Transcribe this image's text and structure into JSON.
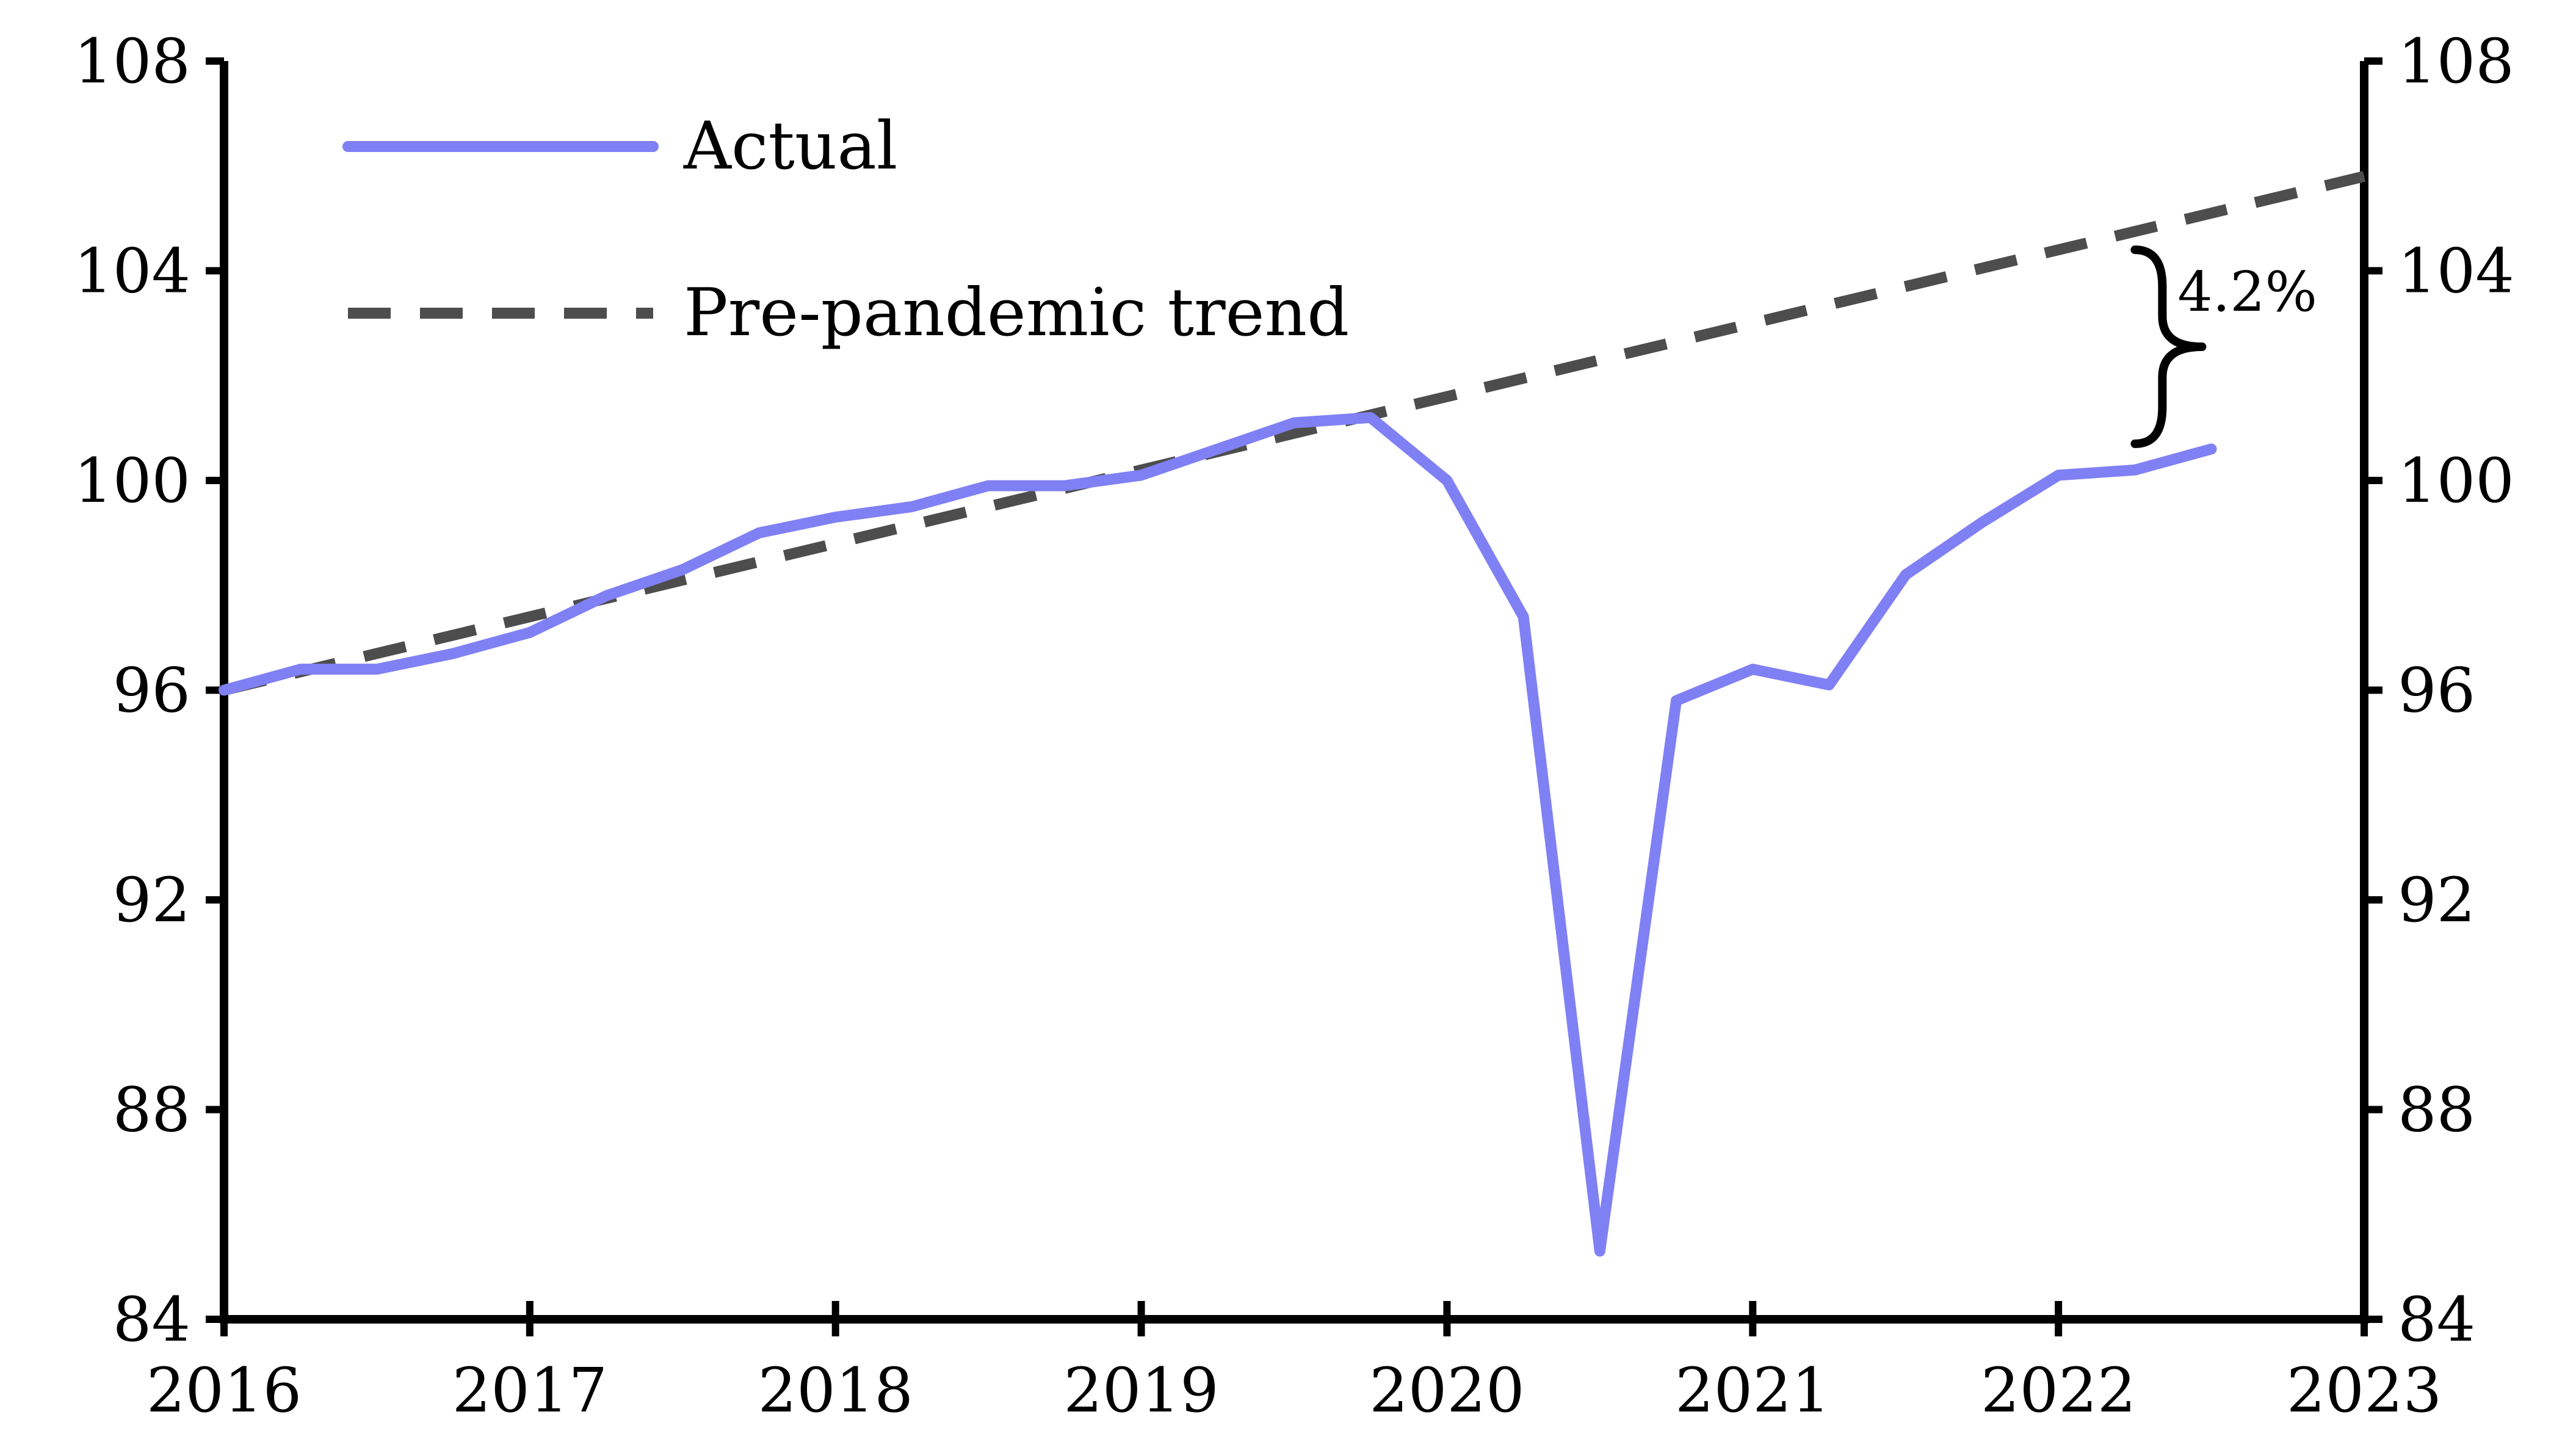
{
  "chart_data": {
    "type": "line",
    "title": "",
    "xlabel": "",
    "ylabel": "",
    "xlim": [
      2016,
      2023
    ],
    "ylim": [
      84,
      108
    ],
    "x_ticks": [
      "2016",
      "2017",
      "2018",
      "2019",
      "2020",
      "2021",
      "2022",
      "2023"
    ],
    "y_ticks": [
      "84",
      "88",
      "92",
      "96",
      "100",
      "104",
      "108"
    ],
    "grid": false,
    "legend_position": "top-left",
    "series": [
      {
        "name": "Actual",
        "color": "#8080f5",
        "style": "solid",
        "x": [
          2016.0,
          2016.25,
          2016.5,
          2016.75,
          2017.0,
          2017.25,
          2017.5,
          2017.75,
          2018.0,
          2018.25,
          2018.5,
          2018.75,
          2019.0,
          2019.25,
          2019.5,
          2019.75,
          2020.0,
          2020.25,
          2020.5,
          2020.75,
          2021.0,
          2021.25,
          2021.5,
          2021.75,
          2022.0,
          2022.25,
          2022.5
        ],
        "y": [
          96.0,
          96.4,
          96.4,
          96.7,
          97.1,
          97.8,
          98.3,
          99.0,
          99.3,
          99.5,
          99.9,
          99.9,
          100.1,
          100.6,
          101.1,
          101.2,
          100.0,
          97.4,
          85.3,
          95.8,
          96.4,
          96.1,
          98.2,
          99.2,
          100.1,
          100.2,
          100.6
        ]
      },
      {
        "name": "Pre-pandemic trend",
        "color": "#4d4d4d",
        "style": "dashed",
        "x": [
          2016.0,
          2023.0
        ],
        "y": [
          96.0,
          105.8
        ]
      }
    ],
    "annotations": [
      {
        "text": "4.2%",
        "x": 2022.3,
        "y_range": [
          100.7,
          104.4
        ]
      }
    ]
  }
}
